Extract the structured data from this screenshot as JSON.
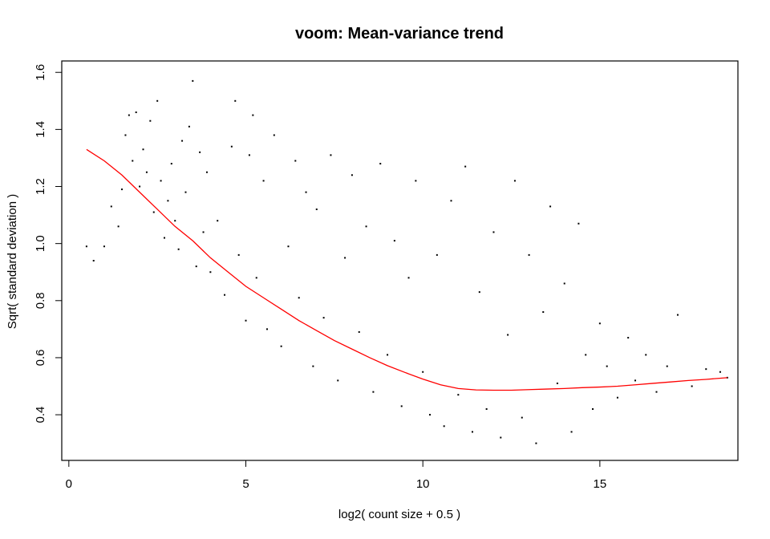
{
  "chart_data": {
    "type": "scatter",
    "title": "voom: Mean-variance trend",
    "xlabel": "log2( count size + 0.5 )",
    "ylabel": "Sqrt( standard deviation )",
    "xlim": [
      -0.2,
      18.9
    ],
    "ylim": [
      0.24,
      1.64
    ],
    "x_ticks": [
      0,
      5,
      10,
      15
    ],
    "y_ticks": [
      0.4,
      0.6,
      0.8,
      1.0,
      1.2,
      1.4,
      1.6
    ],
    "x_tick_labels": [
      "0",
      "5",
      "10",
      "15"
    ],
    "y_tick_labels": [
      "0.4",
      "0.6",
      "0.8",
      "1.0",
      "1.2",
      "1.4",
      "1.6"
    ],
    "grid": false,
    "legend": "none",
    "point_color": "#000000",
    "trend_color": "#ff0000",
    "trend": {
      "x": [
        0.5,
        1.0,
        1.5,
        2.0,
        2.5,
        3.0,
        3.5,
        4.0,
        4.5,
        5.0,
        5.5,
        6.0,
        6.5,
        7.0,
        7.5,
        8.0,
        8.5,
        9.0,
        9.5,
        10.0,
        10.5,
        11.0,
        11.5,
        12.0,
        12.5,
        13.0,
        13.5,
        14.0,
        14.5,
        15.0,
        15.5,
        16.0,
        16.5,
        17.0,
        17.5,
        18.0,
        18.6
      ],
      "y": [
        1.33,
        1.29,
        1.24,
        1.18,
        1.12,
        1.06,
        1.01,
        0.95,
        0.9,
        0.85,
        0.81,
        0.77,
        0.73,
        0.695,
        0.66,
        0.63,
        0.6,
        0.572,
        0.548,
        0.525,
        0.505,
        0.492,
        0.487,
        0.486,
        0.486,
        0.488,
        0.49,
        0.492,
        0.495,
        0.497,
        0.5,
        0.505,
        0.51,
        0.515,
        0.52,
        0.524,
        0.53
      ]
    },
    "points": [
      [
        0.5,
        0.99
      ],
      [
        0.7,
        0.94
      ],
      [
        1.0,
        0.99
      ],
      [
        1.2,
        1.13
      ],
      [
        1.4,
        1.06
      ],
      [
        1.5,
        1.19
      ],
      [
        1.6,
        1.38
      ],
      [
        1.7,
        1.45
      ],
      [
        1.8,
        1.29
      ],
      [
        1.9,
        1.46
      ],
      [
        2.0,
        1.2
      ],
      [
        2.1,
        1.33
      ],
      [
        2.2,
        1.25
      ],
      [
        2.3,
        1.43
      ],
      [
        2.4,
        1.11
      ],
      [
        2.5,
        1.5
      ],
      [
        2.6,
        1.22
      ],
      [
        2.7,
        1.02
      ],
      [
        2.8,
        1.15
      ],
      [
        2.9,
        1.28
      ],
      [
        3.0,
        1.08
      ],
      [
        3.1,
        0.98
      ],
      [
        3.2,
        1.36
      ],
      [
        3.3,
        1.18
      ],
      [
        3.4,
        1.41
      ],
      [
        3.5,
        1.57
      ],
      [
        3.6,
        0.92
      ],
      [
        3.7,
        1.32
      ],
      [
        3.8,
        1.04
      ],
      [
        3.9,
        1.25
      ],
      [
        4.0,
        0.9
      ],
      [
        4.2,
        1.08
      ],
      [
        4.4,
        0.82
      ],
      [
        4.6,
        1.34
      ],
      [
        4.7,
        1.5
      ],
      [
        4.8,
        0.96
      ],
      [
        5.0,
        0.73
      ],
      [
        5.1,
        1.31
      ],
      [
        5.2,
        1.45
      ],
      [
        5.3,
        0.88
      ],
      [
        5.5,
        1.22
      ],
      [
        5.6,
        0.7
      ],
      [
        5.8,
        1.38
      ],
      [
        6.0,
        0.64
      ],
      [
        6.2,
        0.99
      ],
      [
        6.4,
        1.29
      ],
      [
        6.5,
        0.81
      ],
      [
        6.7,
        1.18
      ],
      [
        6.9,
        0.57
      ],
      [
        7.0,
        1.12
      ],
      [
        7.2,
        0.74
      ],
      [
        7.4,
        1.31
      ],
      [
        7.6,
        0.52
      ],
      [
        7.8,
        0.95
      ],
      [
        8.0,
        1.24
      ],
      [
        8.2,
        0.69
      ],
      [
        8.4,
        1.06
      ],
      [
        8.6,
        0.48
      ],
      [
        8.8,
        1.28
      ],
      [
        9.0,
        0.61
      ],
      [
        9.2,
        1.01
      ],
      [
        9.4,
        0.43
      ],
      [
        9.6,
        0.88
      ],
      [
        9.8,
        1.22
      ],
      [
        10.0,
        0.55
      ],
      [
        10.2,
        0.4
      ],
      [
        10.4,
        0.96
      ],
      [
        10.6,
        0.36
      ],
      [
        10.8,
        1.15
      ],
      [
        11.0,
        0.47
      ],
      [
        11.2,
        1.27
      ],
      [
        11.4,
        0.34
      ],
      [
        11.6,
        0.83
      ],
      [
        11.8,
        0.42
      ],
      [
        12.0,
        1.04
      ],
      [
        12.2,
        0.32
      ],
      [
        12.4,
        0.68
      ],
      [
        12.6,
        1.22
      ],
      [
        12.8,
        0.39
      ],
      [
        13.0,
        0.96
      ],
      [
        13.2,
        0.3
      ],
      [
        13.4,
        0.76
      ],
      [
        13.6,
        1.13
      ],
      [
        13.8,
        0.51
      ],
      [
        14.0,
        0.86
      ],
      [
        14.2,
        0.34
      ],
      [
        14.4,
        1.07
      ],
      [
        14.6,
        0.61
      ],
      [
        14.8,
        0.42
      ],
      [
        15.0,
        0.72
      ],
      [
        15.2,
        0.57
      ],
      [
        15.5,
        0.46
      ],
      [
        15.8,
        0.67
      ],
      [
        16.0,
        0.52
      ],
      [
        16.3,
        0.61
      ],
      [
        16.6,
        0.48
      ],
      [
        16.9,
        0.57
      ],
      [
        17.2,
        0.75
      ],
      [
        17.6,
        0.5
      ],
      [
        18.0,
        0.56
      ],
      [
        18.4,
        0.55
      ],
      [
        18.6,
        0.53
      ]
    ]
  }
}
